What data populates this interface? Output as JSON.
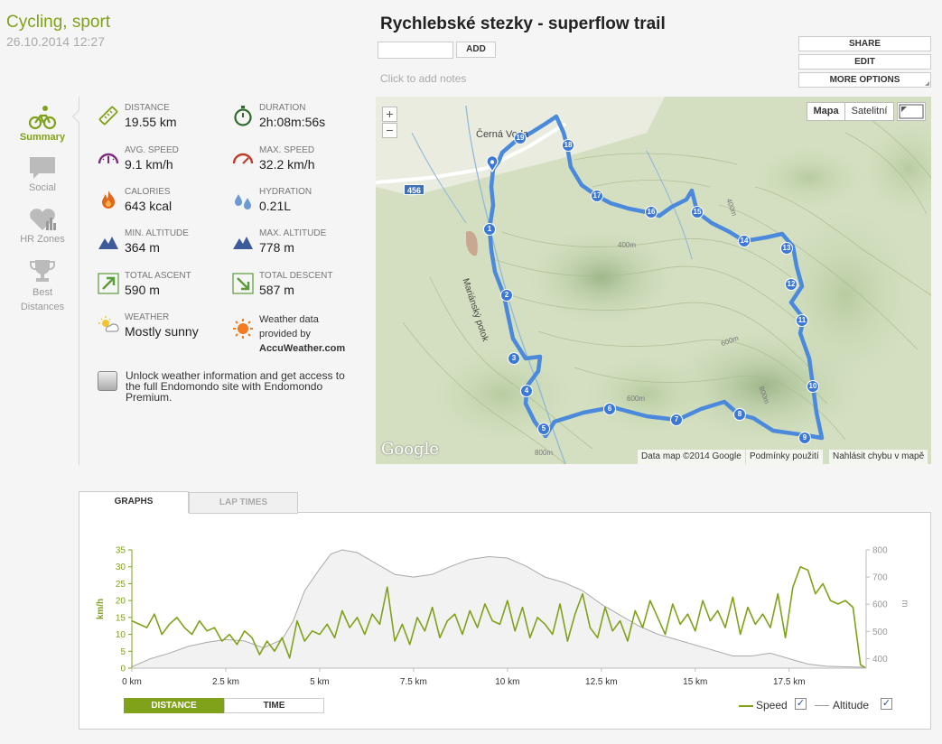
{
  "workout": {
    "sport": "Cycling, sport",
    "datetime": "26.10.2014 12:27",
    "title": "Rychlebské stezky - superflow trail",
    "add_button": "ADD",
    "notes_placeholder": "Click to add notes"
  },
  "options": {
    "share": "SHARE",
    "edit": "EDIT",
    "more": "MORE OPTIONS"
  },
  "nav": [
    {
      "label": "Summary",
      "icon": "cyclist-icon"
    },
    {
      "label": "Social",
      "icon": "speech-bubble-icon"
    },
    {
      "label": "HR Zones",
      "icon": "heart-chart-icon"
    },
    {
      "label": "Best Distances",
      "icon": "trophy-icon"
    }
  ],
  "stats": {
    "distance": {
      "label": "DISTANCE",
      "value": "19.55 km",
      "icon": "ruler-icon"
    },
    "duration": {
      "label": "DURATION",
      "value": "2h:08m:56s",
      "icon": "stopwatch-icon"
    },
    "avg_speed": {
      "label": "AVG. SPEED",
      "value": "9.1 km/h",
      "icon": "speedometer-icon"
    },
    "max_speed": {
      "label": "MAX. SPEED",
      "value": "32.2 km/h",
      "icon": "speedometer-max-icon"
    },
    "calories": {
      "label": "CALORIES",
      "value": "643 kcal",
      "icon": "flame-icon"
    },
    "hydration": {
      "label": "HYDRATION",
      "value": "0.21L",
      "icon": "water-drops-icon"
    },
    "min_altitude": {
      "label": "MIN. ALTITUDE",
      "value": "364 m",
      "icon": "mountain-icon"
    },
    "max_altitude": {
      "label": "MAX. ALTITUDE",
      "value": "778 m",
      "icon": "mountain-icon"
    },
    "total_ascent": {
      "label": "TOTAL ASCENT",
      "value": "590 m",
      "icon": "arrow-up-right-icon"
    },
    "total_descent": {
      "label": "TOTAL DESCENT",
      "value": "587 m",
      "icon": "arrow-down-right-icon"
    },
    "weather": {
      "label": "WEATHER",
      "value": "Mostly sunny",
      "icon": "partly-sunny-icon"
    }
  },
  "weather_provider": {
    "line1": "Weather data",
    "line2": "provided by",
    "brand": "AccuWeather.com"
  },
  "premium_text": "Unlock weather information and get access to the full Endomondo site with Endomondo Premium.",
  "map": {
    "type_map": "Mapa",
    "type_sat": "Satelitní",
    "zoom_in": "+",
    "zoom_out": "−",
    "place": "Černá Voda",
    "stream": "Mariánský potok",
    "road": "456",
    "contours": [
      "400m",
      "400m",
      "600m",
      "600m",
      "800m",
      "800m"
    ],
    "attrib_data": "Data map ©2014 Google",
    "attrib_terms": "Podmínky použití",
    "attrib_report": "Nahlásit chybu v mapě",
    "google": "Google",
    "waypoints": [
      "1",
      "2",
      "3",
      "4",
      "5",
      "6",
      "7",
      "8",
      "9",
      "10",
      "11",
      "12",
      "13",
      "14",
      "15",
      "16",
      "17",
      "18",
      "19"
    ]
  },
  "tabs": {
    "graphs": "GRAPHS",
    "laps": "LAP TIMES"
  },
  "chart_data": {
    "type": "line",
    "xlabel": "",
    "x_ticks": [
      "0 km",
      "2.5 km",
      "5 km",
      "7.5 km",
      "10 km",
      "12.5 km",
      "15 km",
      "17.5 km"
    ],
    "y_left": {
      "label": "km/h",
      "ticks": [
        0,
        5,
        10,
        15,
        20,
        25,
        30,
        35
      ],
      "range": [
        0,
        35
      ],
      "color": "#7fa21a"
    },
    "y_right": {
      "label": "m",
      "ticks": [
        400,
        500,
        600,
        700,
        800
      ],
      "range": [
        365,
        800
      ],
      "color": "#999999"
    },
    "xlim": [
      0,
      19.55
    ],
    "series": [
      {
        "name": "Altitude",
        "axis": "right",
        "color": "#aaaaaa",
        "x": [
          0,
          0.5,
          1.0,
          1.5,
          2.0,
          2.5,
          3.0,
          3.5,
          4.0,
          4.3,
          4.6,
          5.0,
          5.3,
          5.6,
          6.0,
          6.5,
          7.0,
          7.5,
          8.0,
          8.5,
          9.0,
          9.5,
          10.0,
          10.5,
          11.0,
          11.5,
          12.0,
          12.5,
          13.0,
          13.5,
          14.0,
          14.5,
          15.0,
          15.5,
          16.0,
          16.5,
          17.0,
          17.5,
          18.0,
          18.5,
          19.0,
          19.55
        ],
        "y": [
          370,
          400,
          420,
          445,
          460,
          470,
          465,
          440,
          470,
          540,
          650,
          730,
          785,
          800,
          790,
          750,
          710,
          700,
          710,
          740,
          765,
          775,
          770,
          740,
          700,
          680,
          650,
          600,
          560,
          520,
          490,
          470,
          450,
          430,
          410,
          410,
          420,
          400,
          380,
          372,
          370,
          368
        ]
      },
      {
        "name": "Speed",
        "axis": "left",
        "color": "#7fa21a",
        "x": [
          0,
          0.2,
          0.4,
          0.6,
          0.8,
          1.0,
          1.2,
          1.4,
          1.6,
          1.8,
          2.0,
          2.2,
          2.4,
          2.6,
          2.8,
          3.0,
          3.2,
          3.4,
          3.6,
          3.8,
          4.0,
          4.2,
          4.4,
          4.6,
          4.8,
          5.0,
          5.2,
          5.4,
          5.6,
          5.8,
          6.0,
          6.2,
          6.4,
          6.6,
          6.8,
          7.0,
          7.2,
          7.4,
          7.6,
          7.8,
          8.0,
          8.2,
          8.4,
          8.6,
          8.8,
          9.0,
          9.2,
          9.4,
          9.6,
          9.8,
          10.0,
          10.2,
          10.4,
          10.6,
          10.8,
          11.0,
          11.2,
          11.4,
          11.6,
          11.8,
          12.0,
          12.2,
          12.4,
          12.6,
          12.8,
          13.0,
          13.2,
          13.4,
          13.6,
          13.8,
          14.0,
          14.2,
          14.4,
          14.6,
          14.8,
          15.0,
          15.2,
          15.4,
          15.6,
          15.8,
          16.0,
          16.2,
          16.4,
          16.6,
          16.8,
          17.0,
          17.2,
          17.4,
          17.6,
          17.8,
          18.0,
          18.2,
          18.4,
          18.6,
          18.8,
          19.0,
          19.2,
          19.4,
          19.55
        ],
        "y": [
          14,
          13,
          12,
          16,
          10,
          13,
          15,
          12,
          10,
          14,
          11,
          12,
          8,
          10,
          7,
          11,
          9,
          4,
          8,
          5,
          9,
          3,
          14,
          8,
          11,
          10,
          13,
          9,
          17,
          12,
          15,
          10,
          16,
          13,
          24,
          8,
          13,
          7,
          15,
          11,
          18,
          9,
          14,
          16,
          10,
          17,
          12,
          19,
          14,
          13,
          20,
          11,
          18,
          9,
          15,
          13,
          10,
          19,
          8,
          16,
          22,
          12,
          9,
          18,
          11,
          14,
          8,
          17,
          12,
          20,
          15,
          10,
          19,
          13,
          16,
          11,
          20,
          14,
          17,
          12,
          21,
          10,
          18,
          13,
          16,
          12,
          22,
          9,
          24,
          30,
          29,
          22,
          25,
          20,
          19,
          20,
          18,
          1,
          0
        ]
      }
    ],
    "legend": [
      {
        "name": "Speed",
        "checked": "✓"
      },
      {
        "name": "Altitude",
        "checked": "✓"
      }
    ],
    "legend_position": "bottom-right",
    "grid": false
  },
  "axis_toggle": {
    "distance": "DISTANCE",
    "time": "TIME"
  }
}
